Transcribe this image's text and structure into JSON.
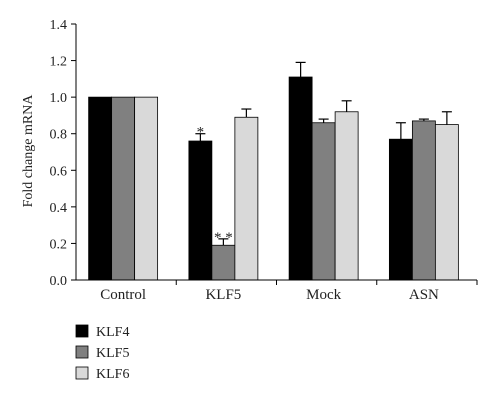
{
  "chart_data": {
    "type": "bar",
    "ylabel": "Fold change mRNA",
    "ylim": [
      0,
      1.4
    ],
    "yticks": [
      "0.0",
      "0.2",
      "0.4",
      "0.6",
      "0.8",
      "1.0",
      "1.2",
      "1.4"
    ],
    "categories": [
      "Control",
      "KLF5",
      "Mock",
      "ASN"
    ],
    "series": [
      {
        "name": "KLF4",
        "color": "#000000",
        "values": [
          1.0,
          0.76,
          1.11,
          0.77
        ],
        "errors": [
          0,
          0.04,
          0.08,
          0.09
        ]
      },
      {
        "name": "KLF5",
        "color": "#808080",
        "values": [
          1.0,
          0.19,
          0.86,
          0.87
        ],
        "errors": [
          0,
          0.035,
          0.02,
          0.01
        ]
      },
      {
        "name": "KLF6",
        "color": "#d9d9d9",
        "values": [
          1.0,
          0.89,
          0.92,
          0.85
        ],
        "errors": [
          0,
          0.045,
          0.06,
          0.07
        ]
      }
    ],
    "annotations": [
      {
        "category": "KLF5",
        "series": "KLF4",
        "text": "*"
      },
      {
        "category": "KLF5",
        "series": "KLF5",
        "text": "* *"
      }
    ],
    "grid": false,
    "legend_position": "bottom-left"
  }
}
